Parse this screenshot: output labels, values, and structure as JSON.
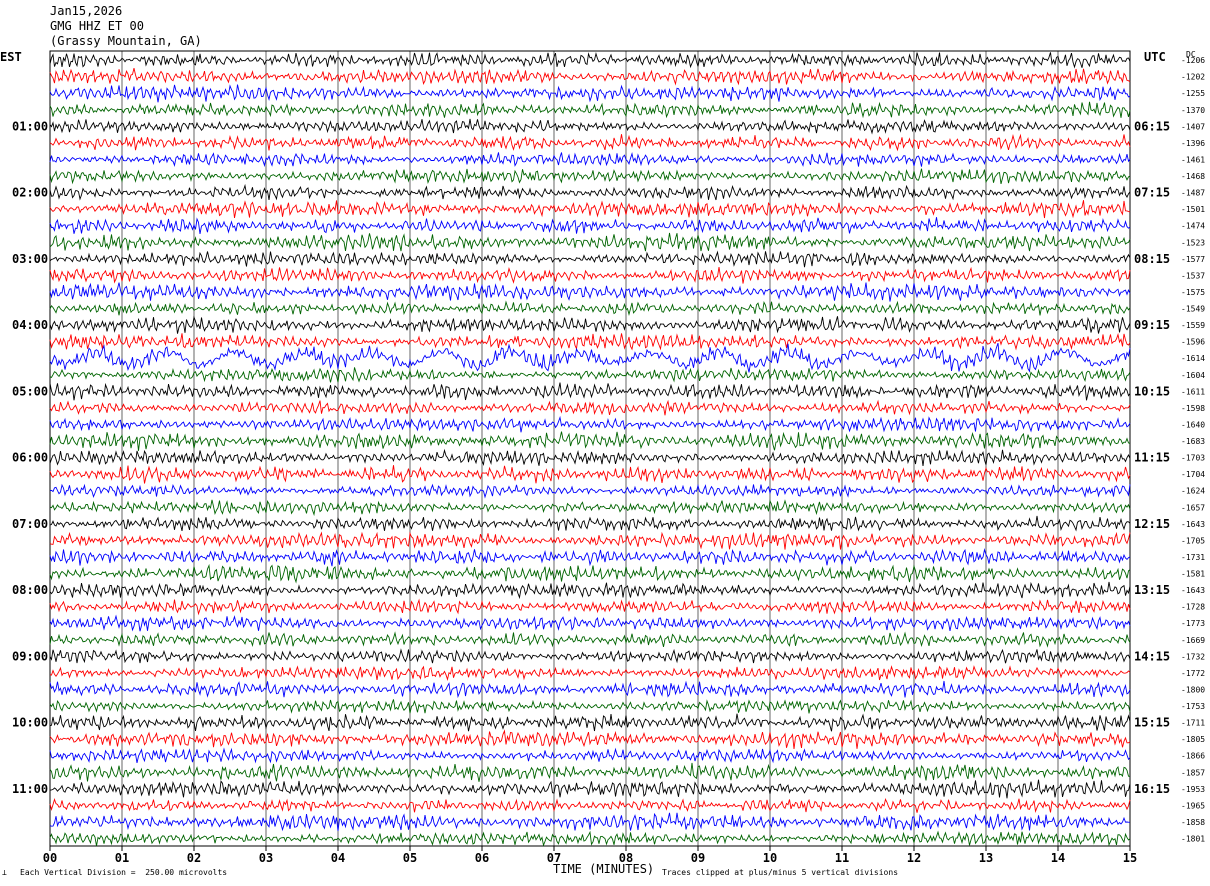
{
  "header": {
    "date": "Jan15,2026",
    "station": "GMG HHZ ET 00",
    "location": "(Grassy Mountain, GA)"
  },
  "left_axis_title": "EST",
  "right_axis_title": "UTC",
  "dc_title": "DC",
  "footer": {
    "division": "Each Vertical Division =  250.00 microvolts",
    "xlabel": "TIME (MINUTES)",
    "clip_note": "Traces clipped at plus/minus 5 vertical divisions"
  },
  "colors": [
    "#000000",
    "#ff0000",
    "#0000ff",
    "#006400"
  ],
  "chart_data": {
    "type": "line",
    "title": "Jan15,2026 GMG HHZ ET 00 (Grassy Mountain, GA)",
    "xlabel": "TIME (MINUTES)",
    "ylabel": "",
    "xlim": [
      0,
      15
    ],
    "x_ticks": [
      "00",
      "01",
      "02",
      "03",
      "04",
      "05",
      "06",
      "07",
      "08",
      "09",
      "10",
      "11",
      "12",
      "13",
      "14",
      "15"
    ],
    "left_hour_labels": [
      "01:00",
      "02:00",
      "03:00",
      "04:00",
      "05:00",
      "06:00",
      "07:00",
      "08:00",
      "09:00",
      "10:00",
      "11:00"
    ],
    "right_hour_labels": [
      "06:15",
      "07:15",
      "08:15",
      "09:15",
      "10:15",
      "11:15",
      "12:15",
      "13:15",
      "14:15",
      "15:15",
      "16:15"
    ],
    "dc_offsets": [
      "-1206",
      "-1202",
      "-1255",
      "-1370",
      "-1407",
      "-1396",
      "-1461",
      "-1468",
      "-1487",
      "-1501",
      "-1474",
      "-1523",
      "-1577",
      "-1537",
      "-1575",
      "-1549",
      "-1559",
      "-1596",
      "-1614",
      "-1604",
      "-1611",
      "-1598",
      "-1640",
      "-1683",
      "-1703",
      "-1704",
      "-1624",
      "-1657",
      "-1643",
      "-1705",
      "-1731",
      "-1581",
      "-1643",
      "-1728",
      "-1773",
      "-1669",
      "-1732",
      "-1772",
      "-1800",
      "-1753",
      "-1711",
      "-1805",
      "-1866",
      "-1857",
      "-1953",
      "-1965",
      "-1858",
      "-1801"
    ],
    "grid": true,
    "trace_count": 48,
    "minutes_per_trace": 15
  }
}
